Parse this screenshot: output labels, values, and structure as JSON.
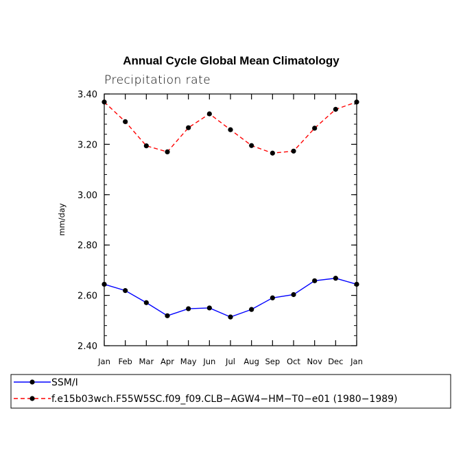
{
  "chart_data": {
    "type": "line",
    "title": "Annual Cycle Global Mean Climatology",
    "subtitle": "Precipitation rate",
    "ylabel": "mm/day",
    "xlabel": "",
    "categories": [
      "Jan",
      "Feb",
      "Mar",
      "Apr",
      "May",
      "Jun",
      "Jul",
      "Aug",
      "Sep",
      "Oct",
      "Nov",
      "Dec",
      "Jan"
    ],
    "ylim": [
      2.4,
      3.4
    ],
    "yticks": [
      "2.40",
      "2.60",
      "2.80",
      "3.00",
      "3.20",
      "3.40"
    ],
    "ytick_values": [
      2.4,
      2.6,
      2.8,
      3.0,
      3.2,
      3.4
    ],
    "series": [
      {
        "name": "SSM/I",
        "color": "#0000ff",
        "dash": "solid",
        "values": [
          2.644,
          2.619,
          2.571,
          2.519,
          2.547,
          2.55,
          2.514,
          2.544,
          2.59,
          2.603,
          2.658,
          2.668,
          2.644
        ]
      },
      {
        "name": "f.e15b03wch.F55W5SC.f09_f09.CLB-AGW4-HM-T0-e01 (1980-1989)",
        "color": "#ff0000",
        "dash": "dashed",
        "values": [
          3.368,
          3.29,
          3.194,
          3.17,
          3.266,
          3.321,
          3.258,
          3.195,
          3.165,
          3.173,
          3.264,
          3.339,
          3.368
        ]
      }
    ],
    "legend": [
      "SSM/I",
      "f.e15b03wch.F55W5SC.f09_f09.CLB−AGW4−HM−T0−e01 (1980−1989)"
    ],
    "legend_position": "bottom"
  }
}
